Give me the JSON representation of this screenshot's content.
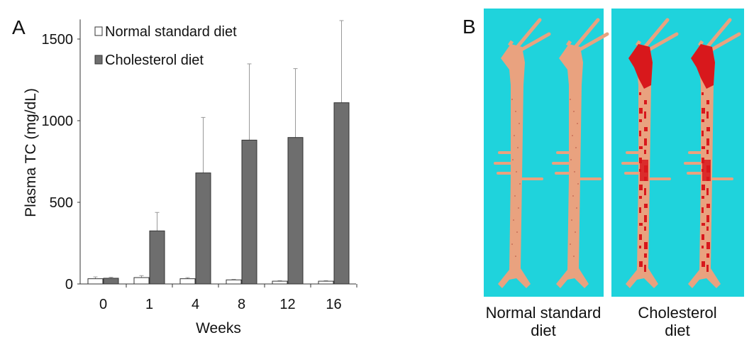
{
  "panel_a_label": "A",
  "panel_b_label": "B",
  "chart_data": {
    "type": "bar",
    "xlabel": "Weeks",
    "ylabel": "Plasma TC (mg/dL)",
    "categories": [
      "0",
      "1",
      "4",
      "8",
      "12",
      "16"
    ],
    "ylim": [
      0,
      1620
    ],
    "yticks": [
      0,
      500,
      1000,
      1500
    ],
    "grid": false,
    "legend_position": "top-left",
    "series": [
      {
        "name": "Normal standard diet",
        "color": "#ffffff",
        "values": [
          32,
          39,
          32,
          25,
          17,
          17
        ],
        "error_upper": [
          43,
          51,
          39,
          28,
          20,
          20
        ]
      },
      {
        "name": "Cholesterol diet",
        "color": "#6e6e6e",
        "values": [
          35,
          325,
          680,
          881,
          897,
          1110
        ],
        "error_upper": [
          41,
          438,
          1020,
          1348,
          1319,
          1613
        ]
      }
    ]
  },
  "photos": {
    "background_color": "#1fd3dc",
    "tissue_color": "#e9a27f",
    "stain_color": "#d8181c",
    "captions": [
      {
        "line1": "Normal standard",
        "line2": "diet"
      },
      {
        "line1": "Cholesterol",
        "line2": "diet"
      }
    ]
  }
}
